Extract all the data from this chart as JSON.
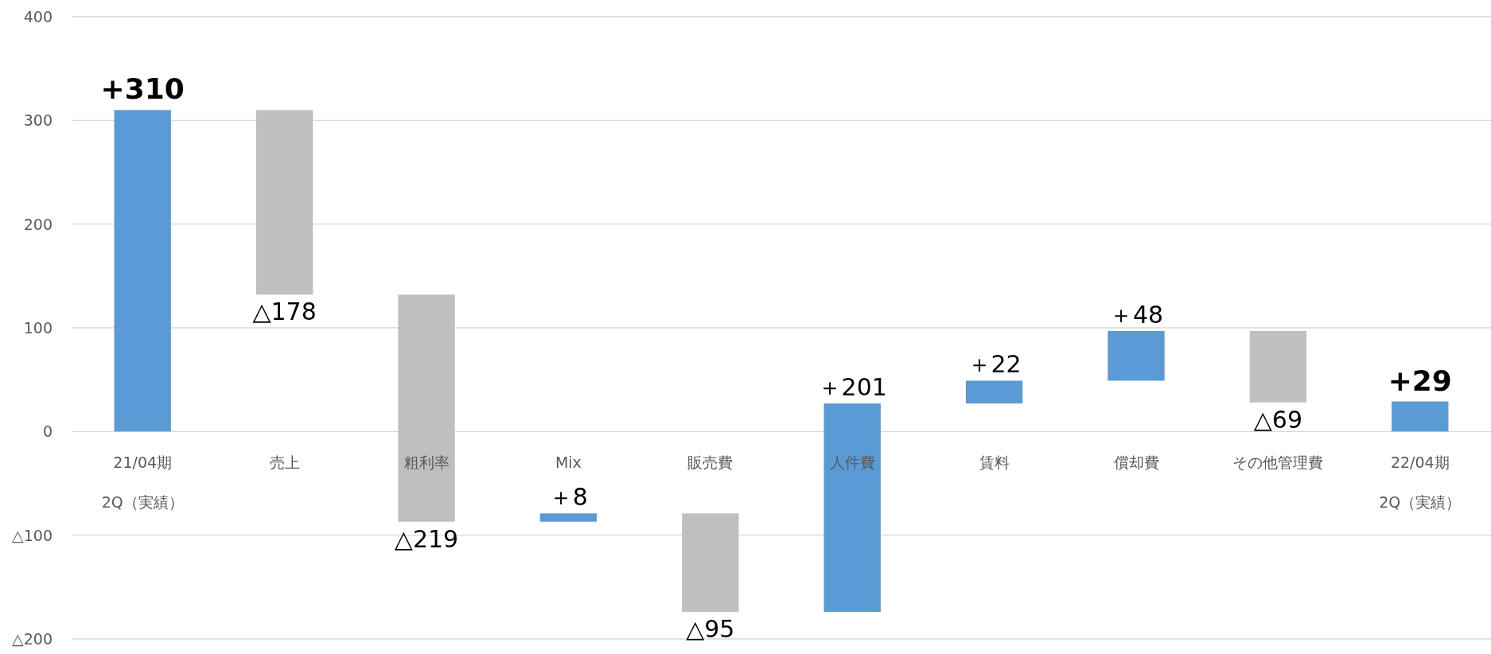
{
  "chart_data": {
    "type": "bar",
    "categories": [
      "21/04期\n2Q（実績）",
      "売上",
      "粗利率",
      "Mix",
      "販売費",
      "人件費",
      "賃料",
      "償却費",
      "その他管理費",
      "22/04期\n2Q（実績）"
    ],
    "values": [
      310,
      -178,
      -219,
      8,
      -95,
      201,
      22,
      48,
      -69,
      29
    ],
    "base": [
      0,
      310,
      132,
      -87,
      -79,
      -174,
      27,
      49,
      97,
      0
    ],
    "colors": [
      "#5b9bd5",
      "#bfbfbf",
      "#bfbfbf",
      "#5b9bd5",
      "#bfbfbf",
      "#5b9bd5",
      "#5b9bd5",
      "#5b9bd5",
      "#bfbfbf",
      "#5b9bd5"
    ],
    "value_labels": [
      "+310",
      "△178",
      "△219",
      "＋8",
      "△95",
      "＋201",
      "＋22",
      "＋48",
      "△69",
      "+29"
    ],
    "ylim": [
      -200,
      400
    ],
    "yticks": [
      {
        "value": -200,
        "label": "△200"
      },
      {
        "value": -100,
        "label": "△100"
      },
      0,
      100,
      200,
      300,
      400
    ],
    "grid": "y"
  }
}
